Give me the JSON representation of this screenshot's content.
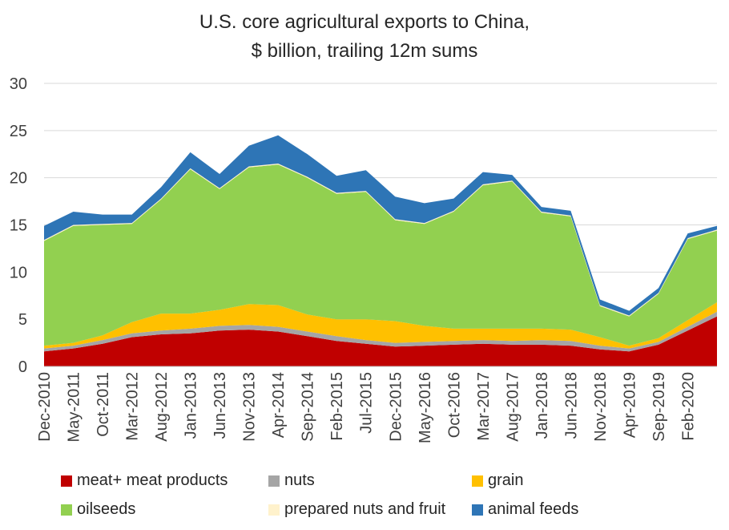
{
  "chart_data": {
    "type": "area",
    "stacked": true,
    "title": "U.S. core agricultural exports to China,",
    "subtitle": "$ billion, trailing 12m sums",
    "xlabel": "",
    "ylabel": "",
    "ylim": [
      0,
      30
    ],
    "yticks": [
      0,
      5,
      10,
      15,
      20,
      25,
      30
    ],
    "grid": "horizontal",
    "legend_position": "bottom",
    "x_tick_labels": [
      "Dec-2010",
      "May-2011",
      "Oct-2011",
      "Mar-2012",
      "Aug-2012",
      "Jan-2013",
      "Jun-2013",
      "Nov-2013",
      "Apr-2014",
      "Sep-2014",
      "Feb-2015",
      "Jul-2015",
      "Dec-2015",
      "May-2016",
      "Oct-2016",
      "Mar-2017",
      "Aug-2017",
      "Jan-2018",
      "Jun-2018",
      "Nov-2018",
      "Apr-2019",
      "Sep-2019",
      "Feb-2020"
    ],
    "x": [
      "Dec-2010",
      "May-2011",
      "Oct-2011",
      "Mar-2012",
      "Aug-2012",
      "Jan-2013",
      "Jun-2013",
      "Nov-2013",
      "Apr-2014",
      "Sep-2014",
      "Feb-2015",
      "Jul-2015",
      "Dec-2015",
      "May-2016",
      "Oct-2016",
      "Mar-2017",
      "Aug-2017",
      "Jan-2018",
      "Jun-2018",
      "Nov-2018",
      "Apr-2019",
      "Sep-2019",
      "Feb-2020",
      "Jul-2020"
    ],
    "series": [
      {
        "name": "meat+ meat products",
        "color": "#C00000",
        "values": [
          1.6,
          1.9,
          2.4,
          3.1,
          3.4,
          3.5,
          3.8,
          3.9,
          3.7,
          3.2,
          2.7,
          2.4,
          2.1,
          2.2,
          2.3,
          2.4,
          2.3,
          2.3,
          2.2,
          1.8,
          1.6,
          2.3,
          3.8,
          5.3
        ]
      },
      {
        "name": "nuts",
        "color": "#A5A5A5",
        "values": [
          0.3,
          0.3,
          0.4,
          0.4,
          0.4,
          0.5,
          0.5,
          0.5,
          0.5,
          0.5,
          0.5,
          0.4,
          0.4,
          0.4,
          0.4,
          0.4,
          0.4,
          0.5,
          0.5,
          0.4,
          0.3,
          0.3,
          0.4,
          0.5
        ]
      },
      {
        "name": "grain",
        "color": "#FFC000",
        "values": [
          0.3,
          0.3,
          0.5,
          1.2,
          1.8,
          1.6,
          1.7,
          2.2,
          2.3,
          1.8,
          1.8,
          2.2,
          2.3,
          1.7,
          1.3,
          1.2,
          1.3,
          1.2,
          1.2,
          0.9,
          0.3,
          0.4,
          0.7,
          1.0
        ]
      },
      {
        "name": "oilseeds",
        "color": "#92D050",
        "values": [
          11.1,
          12.4,
          11.7,
          10.4,
          12.1,
          15.3,
          12.8,
          14.5,
          14.9,
          14.5,
          13.3,
          13.5,
          10.7,
          10.8,
          12.4,
          15.2,
          15.6,
          12.3,
          12.0,
          3.3,
          3.1,
          4.7,
          8.6,
          7.6
        ]
      },
      {
        "name": "prepared nuts and fruit",
        "color": "#FFF2CC",
        "values": [
          0.1,
          0.1,
          0.1,
          0.1,
          0.1,
          0.1,
          0.1,
          0.1,
          0.1,
          0.1,
          0.1,
          0.1,
          0.1,
          0.1,
          0.1,
          0.1,
          0.1,
          0.1,
          0.1,
          0.1,
          0.1,
          0.1,
          0.1,
          0.1
        ]
      },
      {
        "name": "animal feeds",
        "color": "#2E75B6",
        "values": [
          1.5,
          1.4,
          1.0,
          0.9,
          1.2,
          1.7,
          1.5,
          2.2,
          3.0,
          2.4,
          1.8,
          2.2,
          2.4,
          2.1,
          1.3,
          1.3,
          0.6,
          0.5,
          0.5,
          0.6,
          0.5,
          0.5,
          0.5,
          0.4
        ]
      }
    ]
  },
  "legend": [
    {
      "label": "meat+ meat products",
      "color": "#C00000"
    },
    {
      "label": "nuts",
      "color": "#A5A5A5"
    },
    {
      "label": "grain",
      "color": "#FFC000"
    },
    {
      "label": "oilseeds",
      "color": "#92D050"
    },
    {
      "label": "prepared nuts and fruit",
      "color": "#FFF2CC"
    },
    {
      "label": "animal feeds",
      "color": "#2E75B6"
    }
  ]
}
